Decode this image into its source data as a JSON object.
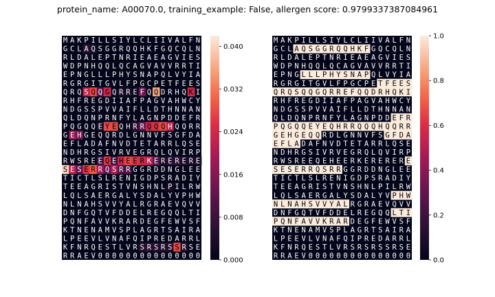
{
  "title": "protein_name: A00070.0, training_example: False, allergen score: 0.9799337387084961",
  "chart_data": [
    {
      "type": "heatmap",
      "name": "attention",
      "colormap": "rocket",
      "vmin": 0,
      "vmax": 0.042,
      "colorbar_ticks": [
        "0.000",
        "0.008",
        "0.016",
        "0.024",
        "0.032",
        "0.040"
      ],
      "rows": [
        "MAKPILLSIYLCLIIVALFN",
        "GCLAQSGGRQQHKFGQCQLN",
        "RLDALEPTNRIEAEAGVIES",
        "WDPNHQQLQCAGVAVVRRTI",
        "EPNGLLLPHYSNAPQLVYIA",
        "RGRGITGVLFPGCPETFEES",
        "QRQSQQGQRREFQQDRHQKI",
        "RHFREGDIIAFPAGVAHWCY",
        "NDGSSPVVAIFLLDTHNNAN",
        "QLDQNPRNFYLAGNPDDEFR",
        "PQGQQEYEQHRRQQQHQQRR",
        "GEHGEQQRDLGNNVFSGFDA",
        "EFLADAFNVDTETARRLQSE",
        "NDHRGSIVRVEGRQLQVIRP",
        "RWSREEQEHEERKERERERE",
        "SESERRQSRRGGRDDNGLEE",
        "TICTLSLRENIGDPSRADIY",
        "TEEAGRISTVNSHNLPILRW",
        "LQLSAERGALYSDALYVPHW",
        "NLNAHSVVYALRGRAEVQVV",
        "DNFGQTVFDDELREGQQLTI",
        "PQNFAVVKRARDEGFEWVSF",
        "KTNENAMVSPLAGRTSAIRA",
        "LPEEVLVNAFQIPREDARRL",
        "KFNRQESTLVRSRSRSSRSE",
        "RRAEV000000000000000"
      ],
      "cells": [
        [
          1,
          3,
          0.005
        ],
        [
          1,
          4,
          0.003
        ],
        [
          6,
          3,
          0.022
        ],
        [
          6,
          4,
          0.028
        ],
        [
          6,
          5,
          0.012
        ],
        [
          6,
          6,
          0.024
        ],
        [
          6,
          8,
          0.003
        ],
        [
          6,
          9,
          0.003
        ],
        [
          6,
          11,
          0.014
        ],
        [
          6,
          13,
          0.036
        ],
        [
          6,
          18,
          0.024
        ],
        [
          10,
          5,
          0.004
        ],
        [
          10,
          6,
          0.028
        ],
        [
          10,
          7,
          0.028
        ],
        [
          10,
          10,
          0.006
        ],
        [
          10,
          11,
          0.012
        ],
        [
          10,
          12,
          0.024
        ],
        [
          10,
          13,
          0.026
        ],
        [
          10,
          14,
          0.028
        ],
        [
          10,
          15,
          0.022
        ],
        [
          11,
          1,
          0.018
        ],
        [
          11,
          2,
          0.014
        ],
        [
          14,
          5,
          0.008
        ],
        [
          14,
          6,
          0.026
        ],
        [
          14,
          7,
          0.008
        ],
        [
          14,
          8,
          0.024
        ],
        [
          14,
          9,
          0.028
        ],
        [
          14,
          10,
          0.026
        ],
        [
          14,
          11,
          0.024
        ],
        [
          14,
          12,
          0.022
        ],
        [
          14,
          13,
          0.012
        ],
        [
          14,
          14,
          0.003
        ],
        [
          14,
          15,
          0.006
        ],
        [
          14,
          16,
          0.006
        ],
        [
          14,
          17,
          0.004
        ],
        [
          14,
          18,
          0.003
        ],
        [
          14,
          19,
          0.004
        ],
        [
          15,
          0,
          0.04
        ],
        [
          15,
          1,
          0.022
        ],
        [
          15,
          2,
          0.012
        ],
        [
          15,
          3,
          0.026
        ],
        [
          15,
          4,
          0.03
        ],
        [
          15,
          5,
          0.018
        ],
        [
          15,
          6,
          0.012
        ],
        [
          15,
          7,
          0.02
        ],
        [
          15,
          8,
          0.01
        ],
        [
          15,
          9,
          0.01
        ],
        [
          17,
          15,
          0.003
        ],
        [
          24,
          11,
          0.005
        ],
        [
          24,
          12,
          0.005
        ],
        [
          24,
          13,
          0.005
        ],
        [
          24,
          14,
          0.005
        ],
        [
          24,
          15,
          0.005
        ],
        [
          24,
          16,
          0.028
        ],
        [
          24,
          17,
          0.005
        ]
      ]
    },
    {
      "type": "heatmap",
      "name": "epitopes",
      "colormap": "rocket",
      "vmin": 0,
      "vmax": 1,
      "colorbar_ticks": [
        "0.0",
        "0.2",
        "0.4",
        "0.6",
        "0.8",
        "1.0"
      ],
      "rows": [
        "MAKPILLSIYLCLIIVALFN",
        "GCLAQSGGRQQHKFGQCQLN",
        "RLDALEPTNRIEAEAGVIES",
        "WDPNHQQLQCAGVAVVRRTI",
        "EPNGLLLPHYSNAPQLVYIA",
        "RGRGITGVLFPGCPETFEES",
        "QRQSQQGQRREFQQDRHQKI",
        "RHFREGDIIAFPAGVAHWCY",
        "NDGSSPVVAIFLLDTHNNAN",
        "QLDQNPRNFYLAGNPDDEFR",
        "PQGQQEYEQHRRQQQHQQRR",
        "GEHGEQQRDLGNNVFSGFDA",
        "EFLADAFNVDTETARRLQSE",
        "NDHRGSIVRVEGRQLQVIRP",
        "RWSREEQEHEERKERERERE",
        "SESERRQSRRGGRDDNGLEE",
        "TICTLSLRENIGDPSRADIY",
        "TEEAGRISTVNSHNLPILRW",
        "LQLSAERGALYSDALYVPHW",
        "NLNAHSVVYALRGRAEVQVV",
        "DNFGQTVFDDELREGQQLTI",
        "PQNFAVVKRARDEGFEWVSF",
        "KTNENAMVSPLAGRTSAIRA",
        "LPEEVLVNAFQIPREDARRL",
        "KFNRQESTLVRSRSRSSRSE",
        "RRAEV000000000000000"
      ],
      "segments": [
        [
          1,
          3,
          13
        ],
        [
          4,
          4,
          13
        ],
        [
          5,
          15,
          19
        ],
        [
          6,
          0,
          19
        ],
        [
          9,
          17,
          19
        ],
        [
          10,
          0,
          19
        ],
        [
          11,
          0,
          6
        ],
        [
          11,
          16,
          19
        ],
        [
          12,
          0,
          3
        ],
        [
          14,
          19,
          19
        ],
        [
          15,
          0,
          9
        ],
        [
          18,
          17,
          19
        ],
        [
          19,
          0,
          10
        ],
        [
          20,
          17,
          19
        ],
        [
          21,
          0,
          10
        ]
      ]
    }
  ]
}
